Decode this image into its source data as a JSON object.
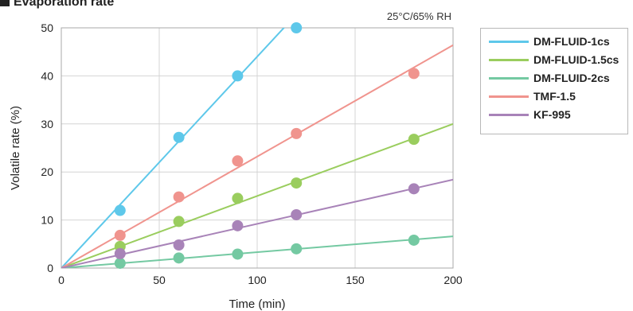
{
  "chart_data": {
    "type": "scatter",
    "title": "Evaporation rate",
    "condition": "25°C/65% RH",
    "xlabel": "Time (min)",
    "ylabel": "Volatile rate (%)",
    "xlim": [
      0,
      200
    ],
    "ylim": [
      0,
      50
    ],
    "x_ticks": [
      0,
      50,
      100,
      150,
      200
    ],
    "y_ticks": [
      0,
      10,
      20,
      30,
      40,
      50
    ],
    "grid": true,
    "legend_position": "right",
    "series": [
      {
        "name": "DM-FLUID-1cs",
        "color": "#5ec8ea",
        "points": [
          [
            30,
            12
          ],
          [
            60,
            27.2
          ],
          [
            90,
            40
          ],
          [
            120,
            50
          ]
        ],
        "trend_slope": 0.44
      },
      {
        "name": "DM-FLUID-1.5cs",
        "color": "#9acd5e",
        "points": [
          [
            30,
            4.5
          ],
          [
            60,
            9.7
          ],
          [
            90,
            14.5
          ],
          [
            120,
            17.7
          ],
          [
            180,
            26.8
          ]
        ],
        "trend_slope": 0.15
      },
      {
        "name": "DM-FLUID-2cs",
        "color": "#74c9a2",
        "points": [
          [
            30,
            1
          ],
          [
            60,
            2.1
          ],
          [
            90,
            2.9
          ],
          [
            120,
            4
          ],
          [
            180,
            5.8
          ]
        ],
        "trend_slope": 0.033
      },
      {
        "name": "TMF-1.5",
        "color": "#f0948e",
        "points": [
          [
            30,
            6.8
          ],
          [
            60,
            14.8
          ],
          [
            90,
            22.3
          ],
          [
            120,
            28
          ],
          [
            180,
            40.5
          ]
        ],
        "trend_slope": 0.232
      },
      {
        "name": "KF-995",
        "color": "#a883b8",
        "points": [
          [
            30,
            3
          ],
          [
            60,
            4.8
          ],
          [
            90,
            8.8
          ],
          [
            120,
            11.1
          ],
          [
            180,
            16.5
          ]
        ],
        "trend_slope": 0.092
      }
    ]
  }
}
